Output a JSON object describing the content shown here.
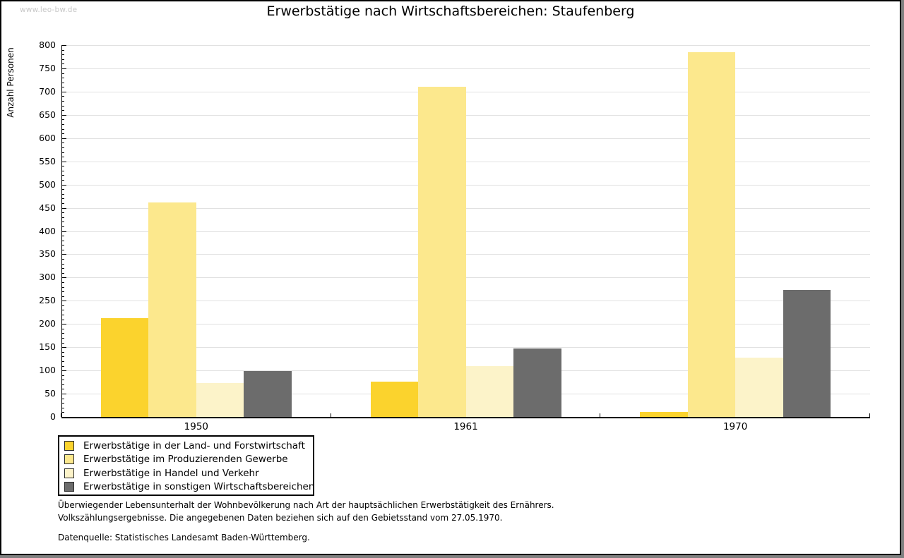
{
  "watermark": {
    "text": "www.leo-bw.de"
  },
  "chart_data": {
    "type": "bar",
    "title": "Erwerbstätige nach Wirtschaftsbereichen: Staufenberg",
    "xlabel": "",
    "ylabel": "Anzahl Personen",
    "ylim": [
      0,
      800
    ],
    "y_tick_step": 50,
    "y_minor_tick_step": 10,
    "grid": true,
    "legend_position": "bottom-left",
    "categories": [
      "1950",
      "1961",
      "1970"
    ],
    "series": [
      {
        "name": "Erwerbstätige in der Land- und Forstwirtschaft",
        "color": "#FBD32D",
        "values": [
          213,
          76,
          11
        ]
      },
      {
        "name": "Erwerbstätige im Produzierenden Gewerbe",
        "color": "#FCE88D",
        "values": [
          462,
          710,
          785
        ]
      },
      {
        "name": "Erwerbstätige in Handel und Verkehr",
        "color": "#FCF3C9",
        "values": [
          73,
          110,
          127
        ]
      },
      {
        "name": "Erwerbstätige in sonstigen Wirtschaftsbereichen",
        "color": "#6C6C6C",
        "values": [
          98,
          147,
          273
        ]
      }
    ]
  },
  "footnotes": {
    "line1": "Überwiegender Lebensunterhalt der Wohnbevölkerung nach Art der hauptsächlichen Erwerbstätigkeit des Ernährers.",
    "line2": "Volkszählungsergebnisse. Die angegebenen Daten beziehen sich auf den Gebietsstand vom 27.05.1970.",
    "source": "Datenquelle: Statistisches Landesamt Baden-Württemberg."
  },
  "colors": {
    "axis": "#000000",
    "gridline": "#E1E1E1",
    "watermark": "#C8C8C8",
    "frame_shadow": "#808080"
  }
}
